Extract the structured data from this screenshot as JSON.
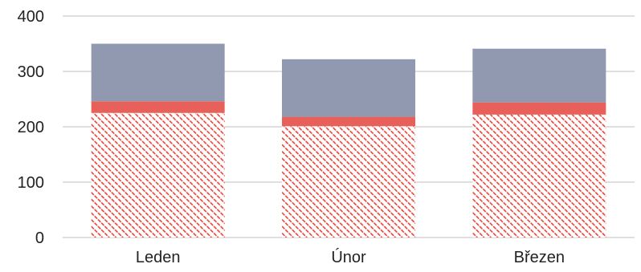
{
  "chart_data": {
    "type": "bar",
    "stacked": true,
    "categories": [
      "Leden",
      "Únor",
      "Březen"
    ],
    "series": [
      {
        "values": [
          225,
          201,
          222
        ],
        "color": "#e8433a",
        "pattern": "diagonal-hatch"
      },
      {
        "values": [
          21,
          17,
          22
        ],
        "color": "#e8605a",
        "pattern": "solid"
      },
      {
        "values": [
          104,
          104,
          97
        ],
        "color": "#9199b1",
        "pattern": "solid"
      }
    ],
    "title": "",
    "xlabel": "",
    "ylabel": "",
    "ylim": [
      0,
      400
    ],
    "yticks": [
      "0",
      "100",
      "200",
      "300",
      "400"
    ],
    "grid": true,
    "legend": "none"
  }
}
